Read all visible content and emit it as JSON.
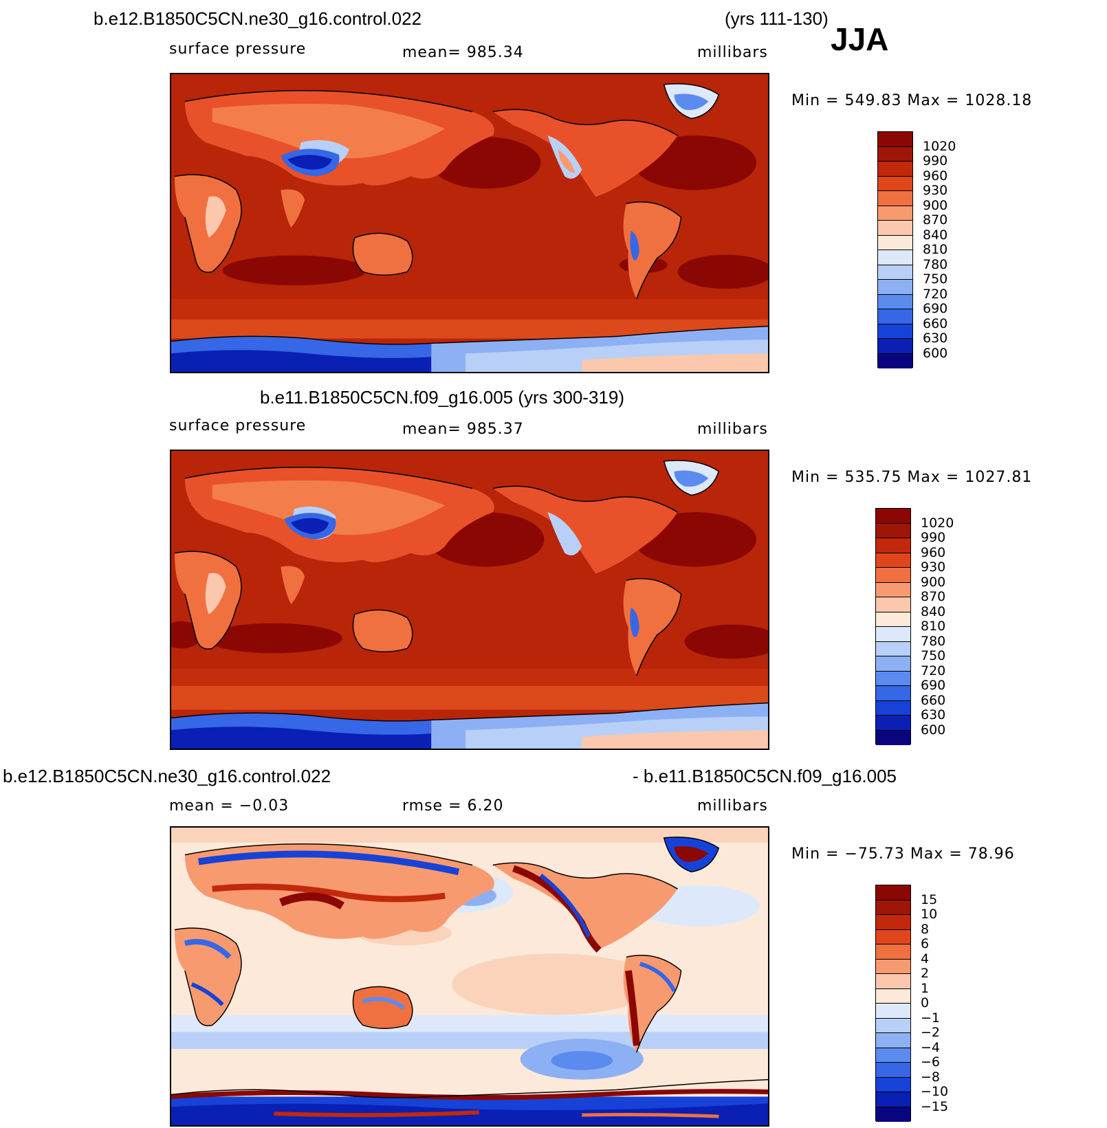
{
  "season": "JJA",
  "colors": {
    "field_scale": [
      "#08057f",
      "#0a1fb3",
      "#1642d8",
      "#3567e6",
      "#5c8bef",
      "#8cb0f3",
      "#b8d0f8",
      "#dde9fb",
      "#fce9da",
      "#fbc8ad",
      "#f89a70",
      "#f07040",
      "#e0461c",
      "#c2280b",
      "#9e1606",
      "#8a0704"
    ],
    "diff_scale": [
      "#08057f",
      "#0a1fb3",
      "#1642d8",
      "#3567e6",
      "#5c8bef",
      "#8cb0f3",
      "#b8d0f8",
      "#dde9fb",
      "#fce9da",
      "#fbc8ad",
      "#f89a70",
      "#f07040",
      "#e0461c",
      "#c2280b",
      "#9e1606",
      "#8a0704"
    ]
  },
  "panels": [
    {
      "heading_left": "b.e12.B1850C5CN.ne30_g16.control.022",
      "heading_right": "(yrs 111-130)",
      "variable": "surface pressure",
      "stat": "mean=  985.34",
      "units": "millibars",
      "minmax": "Min  =  549.83  Max  =  1028.18",
      "colorbar_labels": [
        "1020",
        "990",
        "960",
        "930",
        "900",
        "870",
        "840",
        "810",
        "780",
        "750",
        "720",
        "690",
        "660",
        "630",
        "600"
      ]
    },
    {
      "heading_center": "b.e11.B1850C5CN.f09_g16.005 (yrs 300-319)",
      "variable": "surface pressure",
      "stat": "mean=  985.37",
      "units": "millibars",
      "minmax": "Min  =  535.75  Max  =  1027.81",
      "colorbar_labels": [
        "1020",
        "990",
        "960",
        "930",
        "900",
        "870",
        "840",
        "810",
        "780",
        "750",
        "720",
        "690",
        "660",
        "630",
        "600"
      ]
    },
    {
      "heading_left": "b.e12.B1850C5CN.ne30_g16.control.022",
      "heading_right": "- b.e11.B1850C5CN.f09_g16.005",
      "stat": "mean  =    −0.03",
      "stat2": "rmse  =      6.20",
      "units": "millibars",
      "minmax": "Min  = −75.73  Max  =    78.96",
      "colorbar_labels": [
        "15",
        "10",
        "8",
        "6",
        "4",
        "2",
        "1",
        "0",
        "−1",
        "−2",
        "−4",
        "−6",
        "−8",
        "−10",
        "−15"
      ]
    }
  ]
}
